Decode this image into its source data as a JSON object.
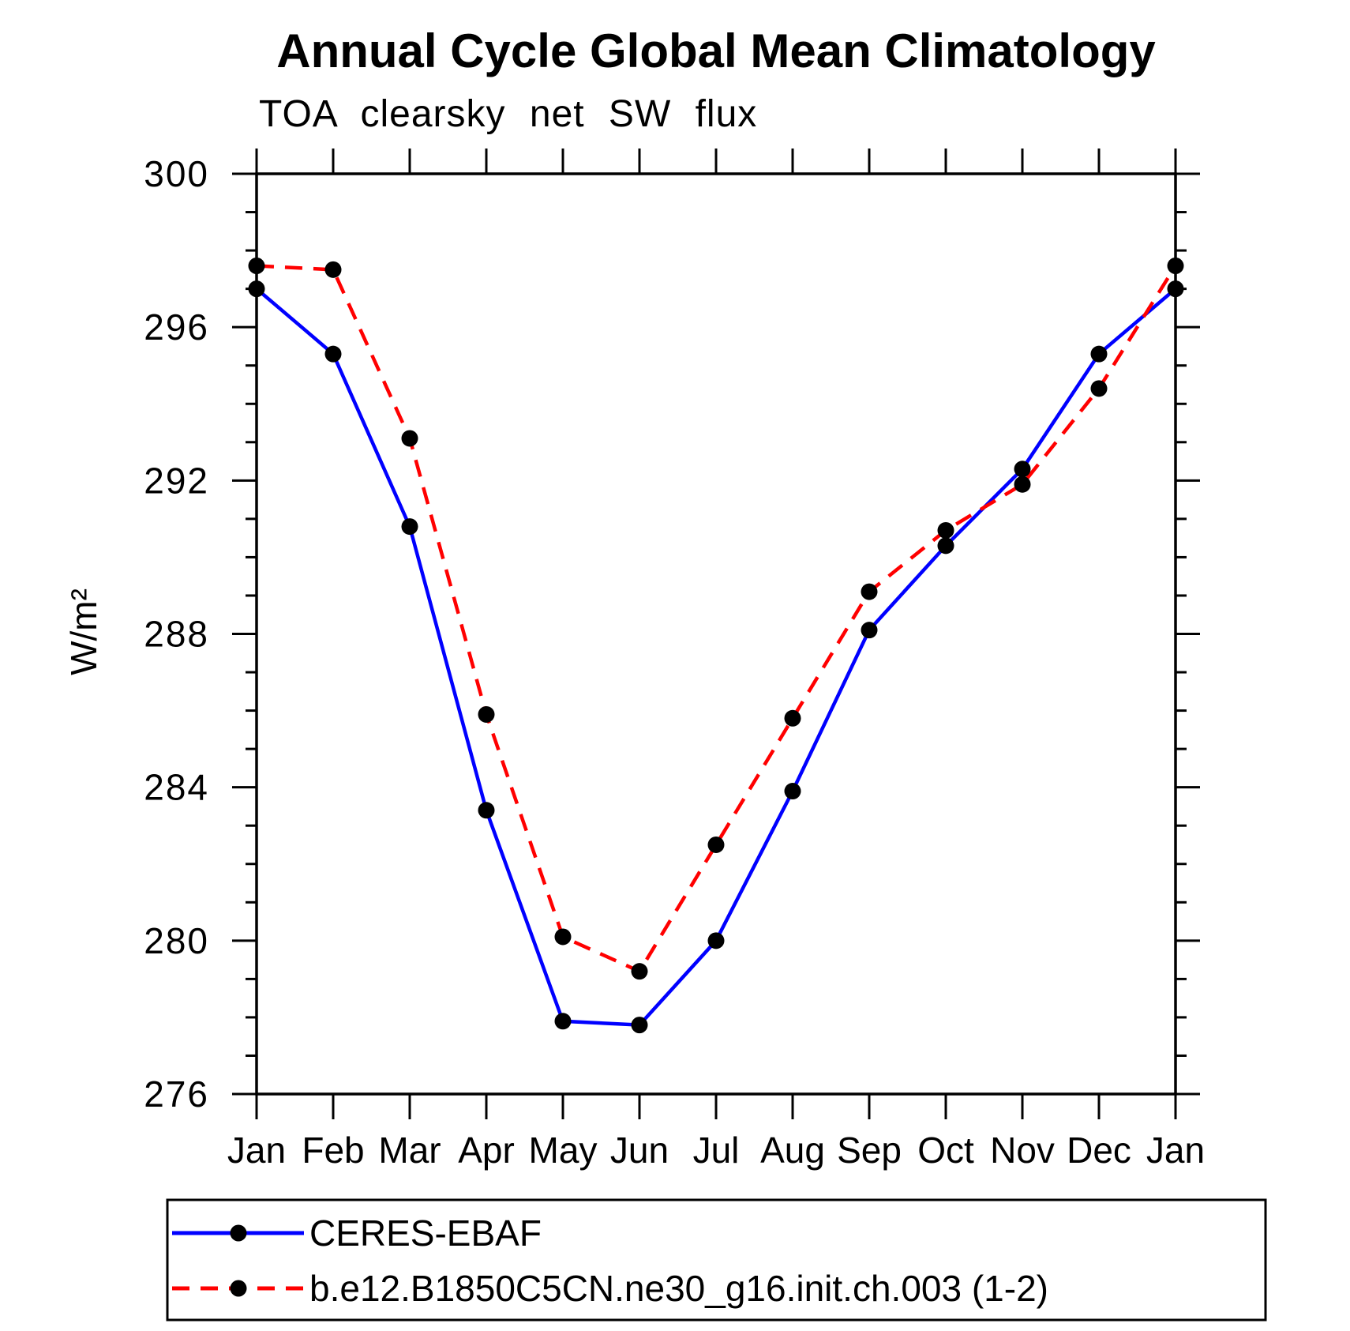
{
  "title": "Annual Cycle Global Mean Climatology",
  "subtitle": "TOA clearsky net SW flux",
  "chart_data": {
    "type": "line",
    "x_categories": [
      "Jan",
      "Feb",
      "Mar",
      "Apr",
      "May",
      "Jun",
      "Jul",
      "Aug",
      "Sep",
      "Oct",
      "Nov",
      "Dec",
      "Jan"
    ],
    "xlabel": "",
    "ylabel": "W/m²",
    "ylim": [
      276,
      300
    ],
    "ytick_step": 4,
    "yminor_step": 1,
    "ytick_labels": [
      "276",
      "280",
      "284",
      "288",
      "292",
      "296",
      "300"
    ],
    "grid": false,
    "legend_position": "bottom",
    "series": [
      {
        "name": "CERES-EBAF",
        "color": "#0000ff",
        "line_style": "solid",
        "marker": "circle",
        "marker_color": "#000000",
        "values": [
          297.0,
          295.3,
          290.8,
          283.4,
          277.9,
          277.8,
          280.0,
          283.9,
          288.1,
          290.3,
          292.3,
          295.3,
          297.0
        ]
      },
      {
        "name": "b.e12.B1850C5CN.ne30_g16.init.ch.003 (1-2)",
        "color": "#ff0000",
        "line_style": "dashed",
        "marker": "circle",
        "marker_color": "#000000",
        "values": [
          297.6,
          297.5,
          293.1,
          285.9,
          280.1,
          279.2,
          282.5,
          285.8,
          289.1,
          290.7,
          291.9,
          294.4,
          297.6
        ]
      }
    ]
  },
  "colors": {
    "background": "#ffffff",
    "axis": "#000000",
    "series_obs": "#0000ff",
    "series_model": "#ff0000",
    "marker": "#000000"
  }
}
